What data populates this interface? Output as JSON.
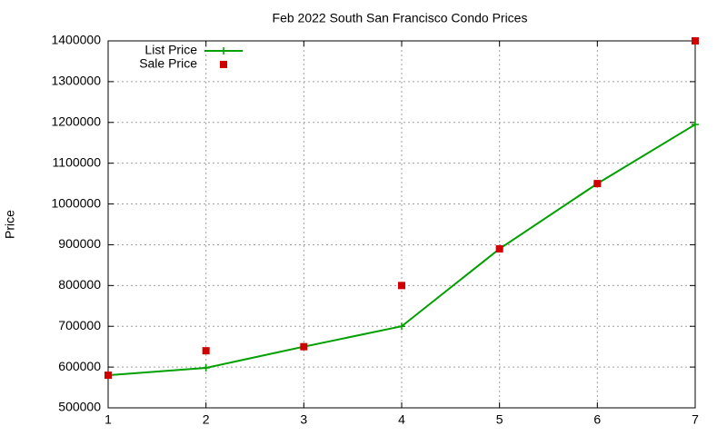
{
  "chart_data": {
    "type": "line",
    "title": "Feb 2022 South San Francisco Condo Prices",
    "y_label": "Price",
    "x": [
      1,
      2,
      3,
      4,
      5,
      6,
      7
    ],
    "xlim": [
      1,
      7
    ],
    "xticks": [
      1,
      2,
      3,
      4,
      5,
      6,
      7
    ],
    "ylim": [
      500000,
      1400000
    ],
    "yticks": [
      500000,
      600000,
      700000,
      800000,
      900000,
      1000000,
      1100000,
      1200000,
      1300000,
      1400000
    ],
    "grid": true,
    "legend": "top-left",
    "series": [
      {
        "name": "List Price",
        "color": "#00a000",
        "line": true,
        "marker": "plus",
        "values": [
          580000,
          598000,
          650000,
          700000,
          890000,
          1050000,
          1195000
        ]
      },
      {
        "name": "Sale Price",
        "color": "#d00000",
        "line": false,
        "marker": "square",
        "values": [
          580000,
          640000,
          650000,
          800000,
          890000,
          1050000,
          1400000
        ]
      }
    ]
  }
}
